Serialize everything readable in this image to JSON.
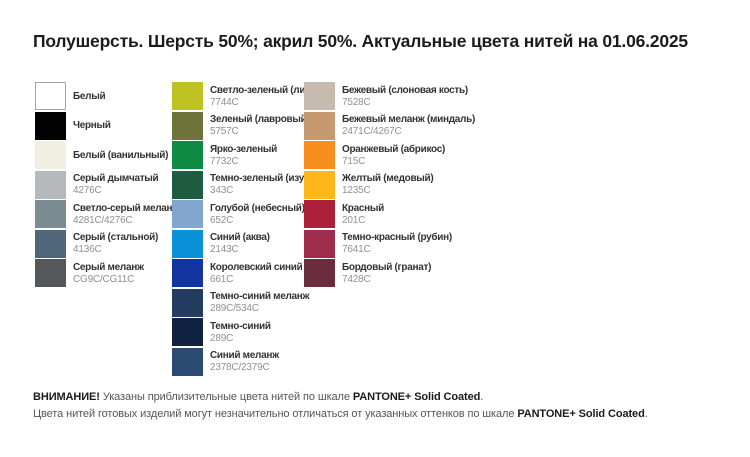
{
  "title": "Полушерсть. Шерсть 50%; акрил 50%. Актуальные цвета нитей на 01.06.2025",
  "columns": [
    {
      "items": [
        {
          "name": "Белый",
          "code": "",
          "color": "#FFFFFF",
          "border": true
        },
        {
          "name": "Черный",
          "code": "",
          "color": "#020202",
          "border": false
        },
        {
          "name": "Белый (ванильный)",
          "code": "",
          "color": "#F0EFE1",
          "border": false
        },
        {
          "name": "Серый дымчатый",
          "code": "4276C",
          "color": "#B5B9BC",
          "border": false
        },
        {
          "name": "Светло-серый меланж",
          "code": "4281C/4276C",
          "color": "#7B8B92",
          "border": false
        },
        {
          "name": "Серый (стальной)",
          "code": "4136C",
          "color": "#4F6779",
          "border": false
        },
        {
          "name": "Серый меланж",
          "code": "CG9C/CG11C",
          "color": "#56575B",
          "border": false
        }
      ]
    },
    {
      "items": [
        {
          "name": "Светло-зеленый (липа)",
          "code": "7744C",
          "color": "#BEC223",
          "border": false
        },
        {
          "name": "Зеленый (лавровый)",
          "code": "5757C",
          "color": "#6C7439",
          "border": false
        },
        {
          "name": "Ярко-зеленый",
          "code": "7732C",
          "color": "#0F8A43",
          "border": false
        },
        {
          "name": "Темно-зеленый (изумруд)",
          "code": "343C",
          "color": "#1D5C40",
          "border": false
        },
        {
          "name": "Голубой (небесный)",
          "code": "652C",
          "color": "#82A5CF",
          "border": false
        },
        {
          "name": "Синий (аква)",
          "code": "2143C",
          "color": "#0A91D8",
          "border": false
        },
        {
          "name": "Королевский синий",
          "code": "661C",
          "color": "#1134A1",
          "border": false
        },
        {
          "name": "Темно-синий меланж",
          "code": "289C/534C",
          "color": "#233C60",
          "border": false
        },
        {
          "name": "Темно-синий",
          "code": "289C",
          "color": "#0F2341",
          "border": false
        },
        {
          "name": "Синий меланж",
          "code": "2378C/2379C",
          "color": "#2B4B72",
          "border": false
        }
      ]
    },
    {
      "items": [
        {
          "name": "Бежевый (слоновая кость)",
          "code": "7528C",
          "color": "#C5BBAE",
          "border": false
        },
        {
          "name": "Бежевый меланж (миндаль)",
          "code": "2471C/4267C",
          "color": "#C6996F",
          "border": false
        },
        {
          "name": "Оранжевый (абрикос)",
          "code": "715C",
          "color": "#F78D1D",
          "border": false
        },
        {
          "name": "Желтый (медовый)",
          "code": "1235C",
          "color": "#FDB71A",
          "border": false
        },
        {
          "name": "Красный",
          "code": "201C",
          "color": "#AC2139",
          "border": false
        },
        {
          "name": "Темно-красный (рубин)",
          "code": "7641C",
          "color": "#A02C4D",
          "border": false
        },
        {
          "name": "Бордовый (гранат)",
          "code": "7428C",
          "color": "#6C2C40",
          "border": false
        }
      ]
    }
  ],
  "footer": {
    "line1": {
      "attention": "ВНИМАНИЕ!",
      "text": " Указаны приблизительные цвета нитей по шкале ",
      "pantone": "PANTONE+ Solid Coated",
      "period": "."
    },
    "line2": {
      "text": "Цвета нитей готовых изделий могут незначительно отличаться от указанных оттенков по шкале ",
      "pantone": "PANTONE+ Solid Coated",
      "period": "."
    }
  }
}
